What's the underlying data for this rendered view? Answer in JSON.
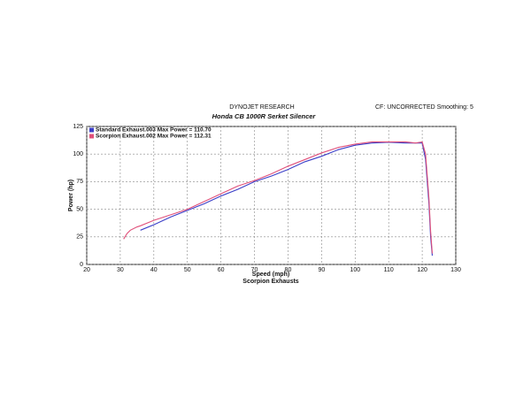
{
  "chart_data": {
    "type": "line",
    "header": "DYNOJET RESEARCH",
    "corner_note": "CF: UNCORRECTED  Smoothing: 5",
    "title": "Honda CB 1000R Serket Silencer",
    "subtitle": "Scorpion Exhausts",
    "x_label": "Speed (mph)",
    "y_label": "Power (hp)",
    "x": [
      31,
      32,
      33,
      35,
      36,
      40,
      45,
      50,
      55,
      60,
      65,
      70,
      75,
      80,
      85,
      90,
      95,
      100,
      105,
      110,
      115,
      118,
      120,
      121,
      122,
      122.5,
      123
    ],
    "series": [
      {
        "name": "Standard Exhaust.003 Max Power = 110.70",
        "color": "#3b3fc8",
        "values": [
          null,
          null,
          null,
          null,
          31,
          36,
          43,
          49,
          55,
          62,
          68,
          75,
          80,
          86,
          93,
          98,
          104,
          108,
          110,
          110.7,
          110,
          110,
          110,
          95,
          55,
          25,
          8
        ]
      },
      {
        "name": "Scorpion Exhaust.002 Max Power = 112.31",
        "color": "#e0507a",
        "values": [
          23,
          28,
          31,
          34,
          35,
          40,
          45,
          50,
          57,
          64,
          71,
          76,
          82,
          89,
          95,
          101,
          106,
          109,
          111,
          111,
          111,
          110,
          111,
          100,
          60,
          30,
          10
        ]
      }
    ],
    "xlim": [
      20,
      130
    ],
    "xticks": [
      20,
      30,
      40,
      50,
      60,
      70,
      80,
      90,
      100,
      110,
      120,
      130
    ],
    "ylim": [
      0,
      125
    ],
    "yticks": [
      0,
      25,
      50,
      75,
      100,
      125
    ],
    "grid": true
  }
}
